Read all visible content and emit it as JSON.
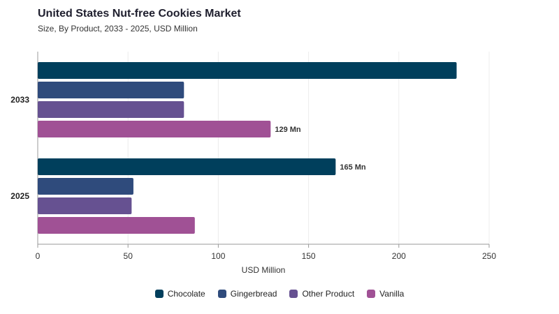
{
  "header": {
    "title": "United States Nut-free Cookies Market",
    "subtitle": "Size, By Product, 2033 - 2025, USD Million"
  },
  "chart_data": {
    "type": "bar",
    "orientation": "horizontal",
    "title": "United States Nut-free Cookies Market",
    "subtitle": "Size, By Product, 2033 - 2025, USD Million",
    "xlabel": "USD Million",
    "ylabel": "",
    "xlim": [
      0,
      250
    ],
    "xticks": [
      "0",
      "50",
      "100",
      "150",
      "200",
      "250"
    ],
    "categories": [
      "2033",
      "2025"
    ],
    "series": [
      {
        "name": "Chocolate",
        "color": "#003f5c",
        "values": [
          232,
          165
        ]
      },
      {
        "name": "Gingerbread",
        "color": "#2f4b7c",
        "values": [
          81,
          53
        ]
      },
      {
        "name": "Other Product",
        "color": "#665191",
        "values": [
          81,
          52
        ]
      },
      {
        "name": "Vanilla",
        "color": "#a05195",
        "values": [
          129,
          87
        ]
      }
    ],
    "data_labels": [
      {
        "category": "2033",
        "series": "Vanilla",
        "text": "129 Mn"
      },
      {
        "category": "2025",
        "series": "Chocolate",
        "text": "165 Mn"
      }
    ],
    "grid": true,
    "legend_position": "bottom"
  }
}
